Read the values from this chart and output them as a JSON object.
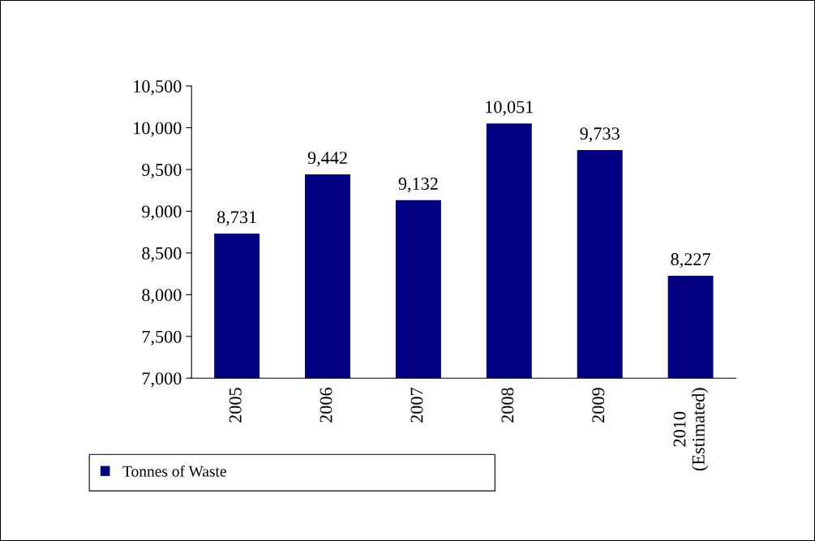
{
  "chart_data": {
    "type": "bar",
    "categories": [
      "2005",
      "2006",
      "2007",
      "2008",
      "2009",
      "2010\n(Estimated)"
    ],
    "series": [
      {
        "name": "Tonnes of Waste",
        "color": "#000080",
        "values": [
          8731,
          9442,
          9132,
          10051,
          9733,
          8227
        ],
        "value_labels": [
          "8,731",
          "9,442",
          "9,132",
          "10,051",
          "9,733",
          "8,227"
        ]
      }
    ],
    "ylim": [
      7000,
      10500
    ],
    "yticks": [
      {
        "value": 7000,
        "label": "7,000"
      },
      {
        "value": 7500,
        "label": "7,500"
      },
      {
        "value": 8000,
        "label": "8,000"
      },
      {
        "value": 8500,
        "label": "8,500"
      },
      {
        "value": 9000,
        "label": "9,000"
      },
      {
        "value": 9500,
        "label": "9,500"
      },
      {
        "value": 10000,
        "label": "10,000"
      },
      {
        "value": 10500,
        "label": "10,500"
      }
    ],
    "grid": false,
    "legend": "bottom left"
  }
}
